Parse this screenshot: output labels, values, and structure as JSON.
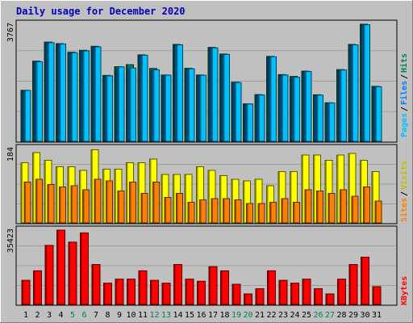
{
  "chart_data": [
    {
      "type": "bar",
      "title": "Daily usage for December 2020",
      "ymax_label": "3767",
      "legend": [
        "Pages",
        "Files",
        "Hits"
      ],
      "categories": [
        "1",
        "2",
        "3",
        "4",
        "5",
        "6",
        "7",
        "8",
        "9",
        "10",
        "11",
        "12",
        "13",
        "14",
        "15",
        "16",
        "17",
        "18",
        "19",
        "20",
        "21",
        "22",
        "23",
        "24",
        "25",
        "26",
        "27",
        "28",
        "29",
        "30",
        "31"
      ],
      "weekend_days": [
        "5",
        "6",
        "12",
        "13",
        "19",
        "20",
        "26",
        "27"
      ],
      "ylim": [
        0,
        3767
      ],
      "series": [
        {
          "name": "Hits",
          "values": [
            1643,
            2580,
            3193,
            3142,
            2866,
            2929,
            3057,
            2121,
            2400,
            2466,
            2783,
            2344,
            2134,
            3117,
            2349,
            2134,
            3022,
            2809,
            1902,
            1207,
            1503,
            2732,
            2147,
            2088,
            2259,
            1498,
            1241,
            2307,
            3117,
            3767,
            1768
          ]
        },
        {
          "name": "Files",
          "values": [
            1611,
            2548,
            3154,
            3116,
            2840,
            2898,
            3019,
            2096,
            2335,
            2335,
            2758,
            2269,
            2121,
            3091,
            2324,
            2121,
            2995,
            2783,
            1876,
            1194,
            1478,
            2707,
            2121,
            2031,
            2233,
            1472,
            1229,
            2282,
            3091,
            3732,
            1742
          ]
        },
        {
          "name": "Pages",
          "values": [
            1637,
            2560,
            3174,
            3129,
            2847,
            2911,
            3040,
            2108,
            2396,
            2358,
            2770,
            2300,
            2130,
            3104,
            2336,
            2128,
            3009,
            2796,
            1889,
            1201,
            1491,
            2720,
            2134,
            2060,
            2246,
            1485,
            1235,
            2295,
            3104,
            3750,
            1755
          ]
        }
      ],
      "colors": {
        "Hits": "#00805c",
        "Files": "#0080ff",
        "Pages": "#00c0ff"
      }
    },
    {
      "type": "bar",
      "ymax_label": "184",
      "legend": [
        "Sites",
        "Visits"
      ],
      "categories": [
        "1",
        "2",
        "3",
        "4",
        "5",
        "6",
        "7",
        "8",
        "9",
        "10",
        "11",
        "12",
        "13",
        "14",
        "15",
        "16",
        "17",
        "18",
        "19",
        "20",
        "21",
        "22",
        "23",
        "24",
        "25",
        "26",
        "27",
        "28",
        "29",
        "30",
        "31"
      ],
      "ylim": [
        0,
        184
      ],
      "series": [
        {
          "name": "Visits",
          "values": [
            149,
            174,
            155,
            139,
            139,
            130,
            181,
            133,
            133,
            149,
            149,
            158,
            120,
            120,
            120,
            139,
            130,
            117,
            108,
            104,
            108,
            92,
            127,
            127,
            168,
            168,
            155,
            168,
            172,
            155,
            127
          ]
        },
        {
          "name": "Sites",
          "values": [
            101,
            108,
            95,
            89,
            92,
            82,
            108,
            104,
            79,
            101,
            73,
            101,
            63,
            73,
            51,
            57,
            60,
            60,
            57,
            48,
            48,
            51,
            60,
            51,
            82,
            79,
            73,
            82,
            66,
            89,
            54
          ]
        }
      ],
      "colors": {
        "Visits": "#ffff00",
        "Sites": "#ff8000"
      }
    },
    {
      "type": "bar",
      "ymax_label": "35423",
      "legend": [
        "KBytes"
      ],
      "categories": [
        "1",
        "2",
        "3",
        "4",
        "5",
        "6",
        "7",
        "8",
        "9",
        "10",
        "11",
        "12",
        "13",
        "14",
        "15",
        "16",
        "17",
        "18",
        "19",
        "20",
        "21",
        "22",
        "23",
        "24",
        "25",
        "26",
        "27",
        "28",
        "29",
        "30",
        "31"
      ],
      "ylim": [
        0,
        35423
      ],
      "series": [
        {
          "name": "KBytes",
          "values": [
            11500,
            16034,
            28149,
            35423,
            29712,
            34119,
            19041,
            10146,
            12070,
            12070,
            16034,
            11500,
            10146,
            19041,
            12070,
            11060,
            18003,
            16034,
            9611,
            5011,
            7500,
            16034,
            11500,
            10146,
            12070,
            7500,
            5011,
            12070,
            19041,
            22542,
            8500
          ]
        }
      ],
      "colors": {
        "KBytes": "#ff0000"
      }
    }
  ]
}
